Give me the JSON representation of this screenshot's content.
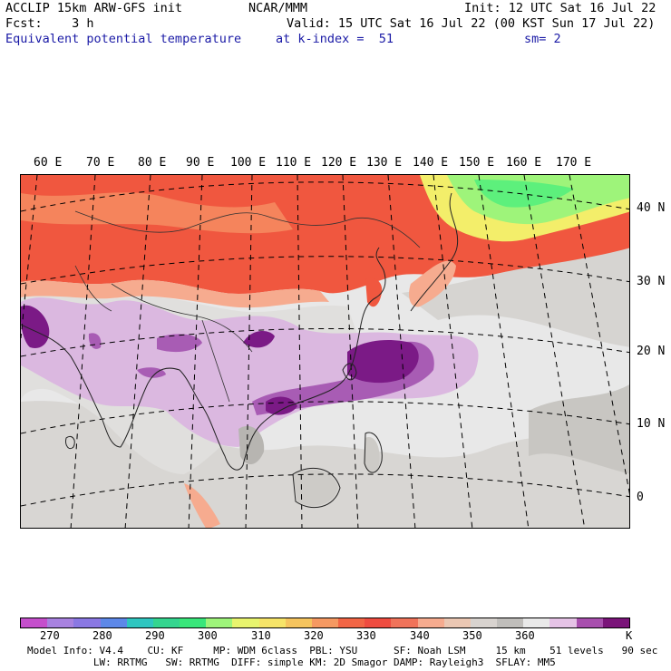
{
  "header": {
    "line1_left": "ACCLIP 15km ARW-GFS init",
    "line1_center": "NCAR/MMM",
    "line1_right": "Init: 12 UTC Sat 16 Jul 22",
    "line2_left": "Fcst:    3 h",
    "line2_right": "Valid: 15 UTC Sat 16 Jul 22 (00 KST Sun 17 Jul 22)",
    "line3_field": "Equivalent potential temperature",
    "line3_level": "at k-index =  51",
    "line3_smooth": "sm= 2"
  },
  "map": {
    "lon_labels": [
      "60 E",
      "70 E",
      "80 E",
      "90 E",
      "100 E",
      "110 E",
      "120 E",
      "130 E",
      "140 E",
      "150 E",
      "160 E",
      "170 E"
    ],
    "lat_labels": [
      "40 N",
      "30 N",
      "20 N",
      "10 N",
      "0"
    ],
    "colors": {
      "ocean": "#e8e8e8",
      "land_gray": "#cdcbc7",
      "land_dark": "#b7b5b1",
      "light_purple": "#dbb8e0",
      "mid_purple": "#a85cb4",
      "deep_purple": "#7b1a86",
      "red": "#f0573f",
      "orange": "#f5845c",
      "salmon": "#f6ab8f",
      "yellow": "#f3ee6a",
      "green": "#9ef47a",
      "bright_green": "#5df07c"
    }
  },
  "colorbar": {
    "colors": [
      "#c54fcc",
      "#a882e0",
      "#8a78e3",
      "#5d88e8",
      "#2fc6c0",
      "#34d58f",
      "#39e67a",
      "#9ef47a",
      "#e8f46e",
      "#f6e468",
      "#f5c45e",
      "#f59962",
      "#f26545",
      "#ef4c40",
      "#f0735a",
      "#f6ab8f",
      "#ebc7b3",
      "#d8d3cf",
      "#c0bebb",
      "#e9e9e9",
      "#e5c3e6",
      "#a84fae",
      "#7a1479"
    ],
    "labels": [
      "270",
      "280",
      "290",
      "300",
      "310",
      "320",
      "330",
      "340",
      "350",
      "360",
      "K"
    ]
  },
  "footer": {
    "line1": "Model Info: V4.4    CU: KF     MP: WDM 6class  PBL: YSU      SF: Noah LSM     15 km    51 levels   90 sec",
    "line2": "           LW: RRTMG   SW: RRTMG  DIFF: simple KM: 2D Smagor DAMP: Rayleigh3  SFLAY: MM5"
  }
}
